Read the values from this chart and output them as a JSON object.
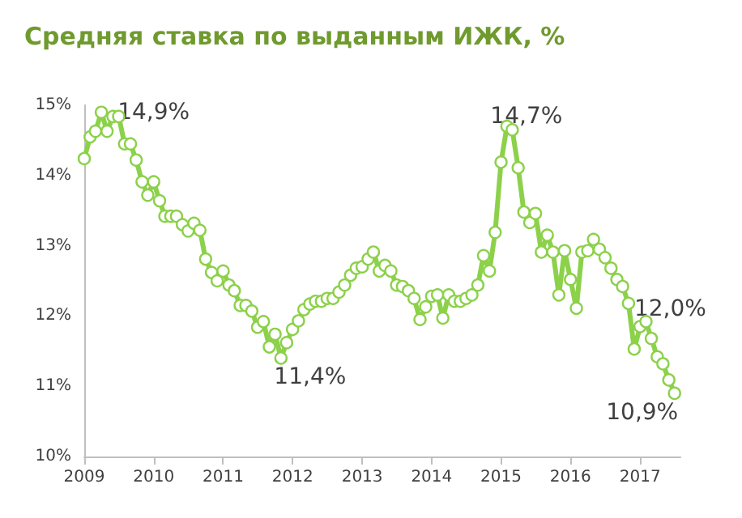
{
  "chart_data": {
    "type": "line",
    "title": "Средняя ставка по выданным ИЖК, %",
    "x": [
      "2009-01",
      "2009-02",
      "2009-03",
      "2009-04",
      "2009-05",
      "2009-06",
      "2009-07",
      "2009-08",
      "2009-09",
      "2009-10",
      "2009-11",
      "2009-12",
      "2010-01",
      "2010-02",
      "2010-03",
      "2010-04",
      "2010-05",
      "2010-06",
      "2010-07",
      "2010-08",
      "2010-09",
      "2010-10",
      "2010-11",
      "2010-12",
      "2011-01",
      "2011-02",
      "2011-03",
      "2011-04",
      "2011-05",
      "2011-06",
      "2011-07",
      "2011-08",
      "2011-09",
      "2011-10",
      "2011-11",
      "2011-12",
      "2012-01",
      "2012-02",
      "2012-03",
      "2012-04",
      "2012-05",
      "2012-06",
      "2012-07",
      "2012-08",
      "2012-09",
      "2012-10",
      "2012-11",
      "2012-12",
      "2013-01",
      "2013-02",
      "2013-03",
      "2013-04",
      "2013-05",
      "2013-06",
      "2013-07",
      "2013-08",
      "2013-09",
      "2013-10",
      "2013-11",
      "2013-12",
      "2014-01",
      "2014-02",
      "2014-03",
      "2014-04",
      "2014-05",
      "2014-06",
      "2014-07",
      "2014-08",
      "2014-09",
      "2014-10",
      "2014-11",
      "2014-12",
      "2015-01",
      "2015-02",
      "2015-03",
      "2015-04",
      "2015-05",
      "2015-06",
      "2015-07",
      "2015-08",
      "2015-09",
      "2015-10",
      "2015-11",
      "2015-12",
      "2016-01",
      "2016-02",
      "2016-03",
      "2016-04",
      "2016-05",
      "2016-06",
      "2016-07",
      "2016-08",
      "2016-09",
      "2016-10",
      "2016-11",
      "2016-12",
      "2017-01",
      "2017-02",
      "2017-03",
      "2017-04",
      "2017-05",
      "2017-06",
      "2017-07"
    ],
    "series": [
      {
        "color": "#8cd14a",
        "values": [
          14.24,
          14.55,
          14.63,
          14.9,
          14.63,
          14.84,
          14.84,
          14.45,
          14.45,
          14.22,
          13.91,
          13.72,
          13.91,
          13.64,
          13.42,
          13.42,
          13.42,
          13.3,
          13.21,
          13.32,
          13.22,
          12.81,
          12.62,
          12.5,
          12.64,
          12.44,
          12.36,
          12.15,
          12.15,
          12.07,
          11.84,
          11.92,
          11.56,
          11.74,
          11.4,
          11.62,
          11.81,
          11.93,
          12.09,
          12.17,
          12.21,
          12.21,
          12.25,
          12.25,
          12.34,
          12.44,
          12.58,
          12.68,
          12.7,
          12.81,
          12.91,
          12.64,
          12.72,
          12.64,
          12.44,
          12.42,
          12.36,
          12.25,
          11.95,
          12.13,
          12.28,
          12.3,
          11.97,
          12.3,
          12.21,
          12.21,
          12.25,
          12.3,
          12.44,
          12.86,
          12.64,
          13.19,
          14.19,
          14.7,
          14.65,
          14.11,
          13.48,
          13.33,
          13.46,
          12.91,
          13.15,
          12.91,
          12.3,
          12.93,
          12.52,
          12.11,
          12.91,
          12.93,
          13.09,
          12.95,
          12.83,
          12.68,
          12.52,
          12.42,
          12.18,
          11.53,
          11.85,
          11.92,
          11.68,
          11.42,
          11.32,
          11.09,
          10.9
        ]
      }
    ],
    "xlim": [
      "2009-01",
      "2017-08"
    ],
    "xticks": [
      {
        "value": "2009-01",
        "label": "2009"
      },
      {
        "value": "2010-01",
        "label": "2010"
      },
      {
        "value": "2011-01",
        "label": "2011"
      },
      {
        "value": "2012-01",
        "label": "2012"
      },
      {
        "value": "2013-01",
        "label": "2013"
      },
      {
        "value": "2014-01",
        "label": "2014"
      },
      {
        "value": "2015-01",
        "label": "2015"
      },
      {
        "value": "2016-01",
        "label": "2016"
      },
      {
        "value": "2017-01",
        "label": "2017"
      }
    ],
    "ylim": [
      10,
      15
    ],
    "yticks": [
      {
        "value": 10,
        "label": "10%"
      },
      {
        "value": 11,
        "label": "11%"
      },
      {
        "value": 12,
        "label": "12%"
      },
      {
        "value": 13,
        "label": "13%"
      },
      {
        "value": 14,
        "label": "14%"
      },
      {
        "value": 15,
        "label": "15%"
      }
    ],
    "marker": "circle",
    "line_style": "solid",
    "grid": false,
    "annotations": [
      {
        "text": "14,9%",
        "x": "2009-04",
        "y": 14.9
      },
      {
        "text": "11,4%",
        "x": "2011-11",
        "y": 11.4
      },
      {
        "text": "14,7%",
        "x": "2015-02",
        "y": 14.7
      },
      {
        "text": "12,0%",
        "x": "2016-12",
        "y": 12.0
      },
      {
        "text": "10,9%",
        "x": "2017-07",
        "y": 10.9
      }
    ]
  }
}
